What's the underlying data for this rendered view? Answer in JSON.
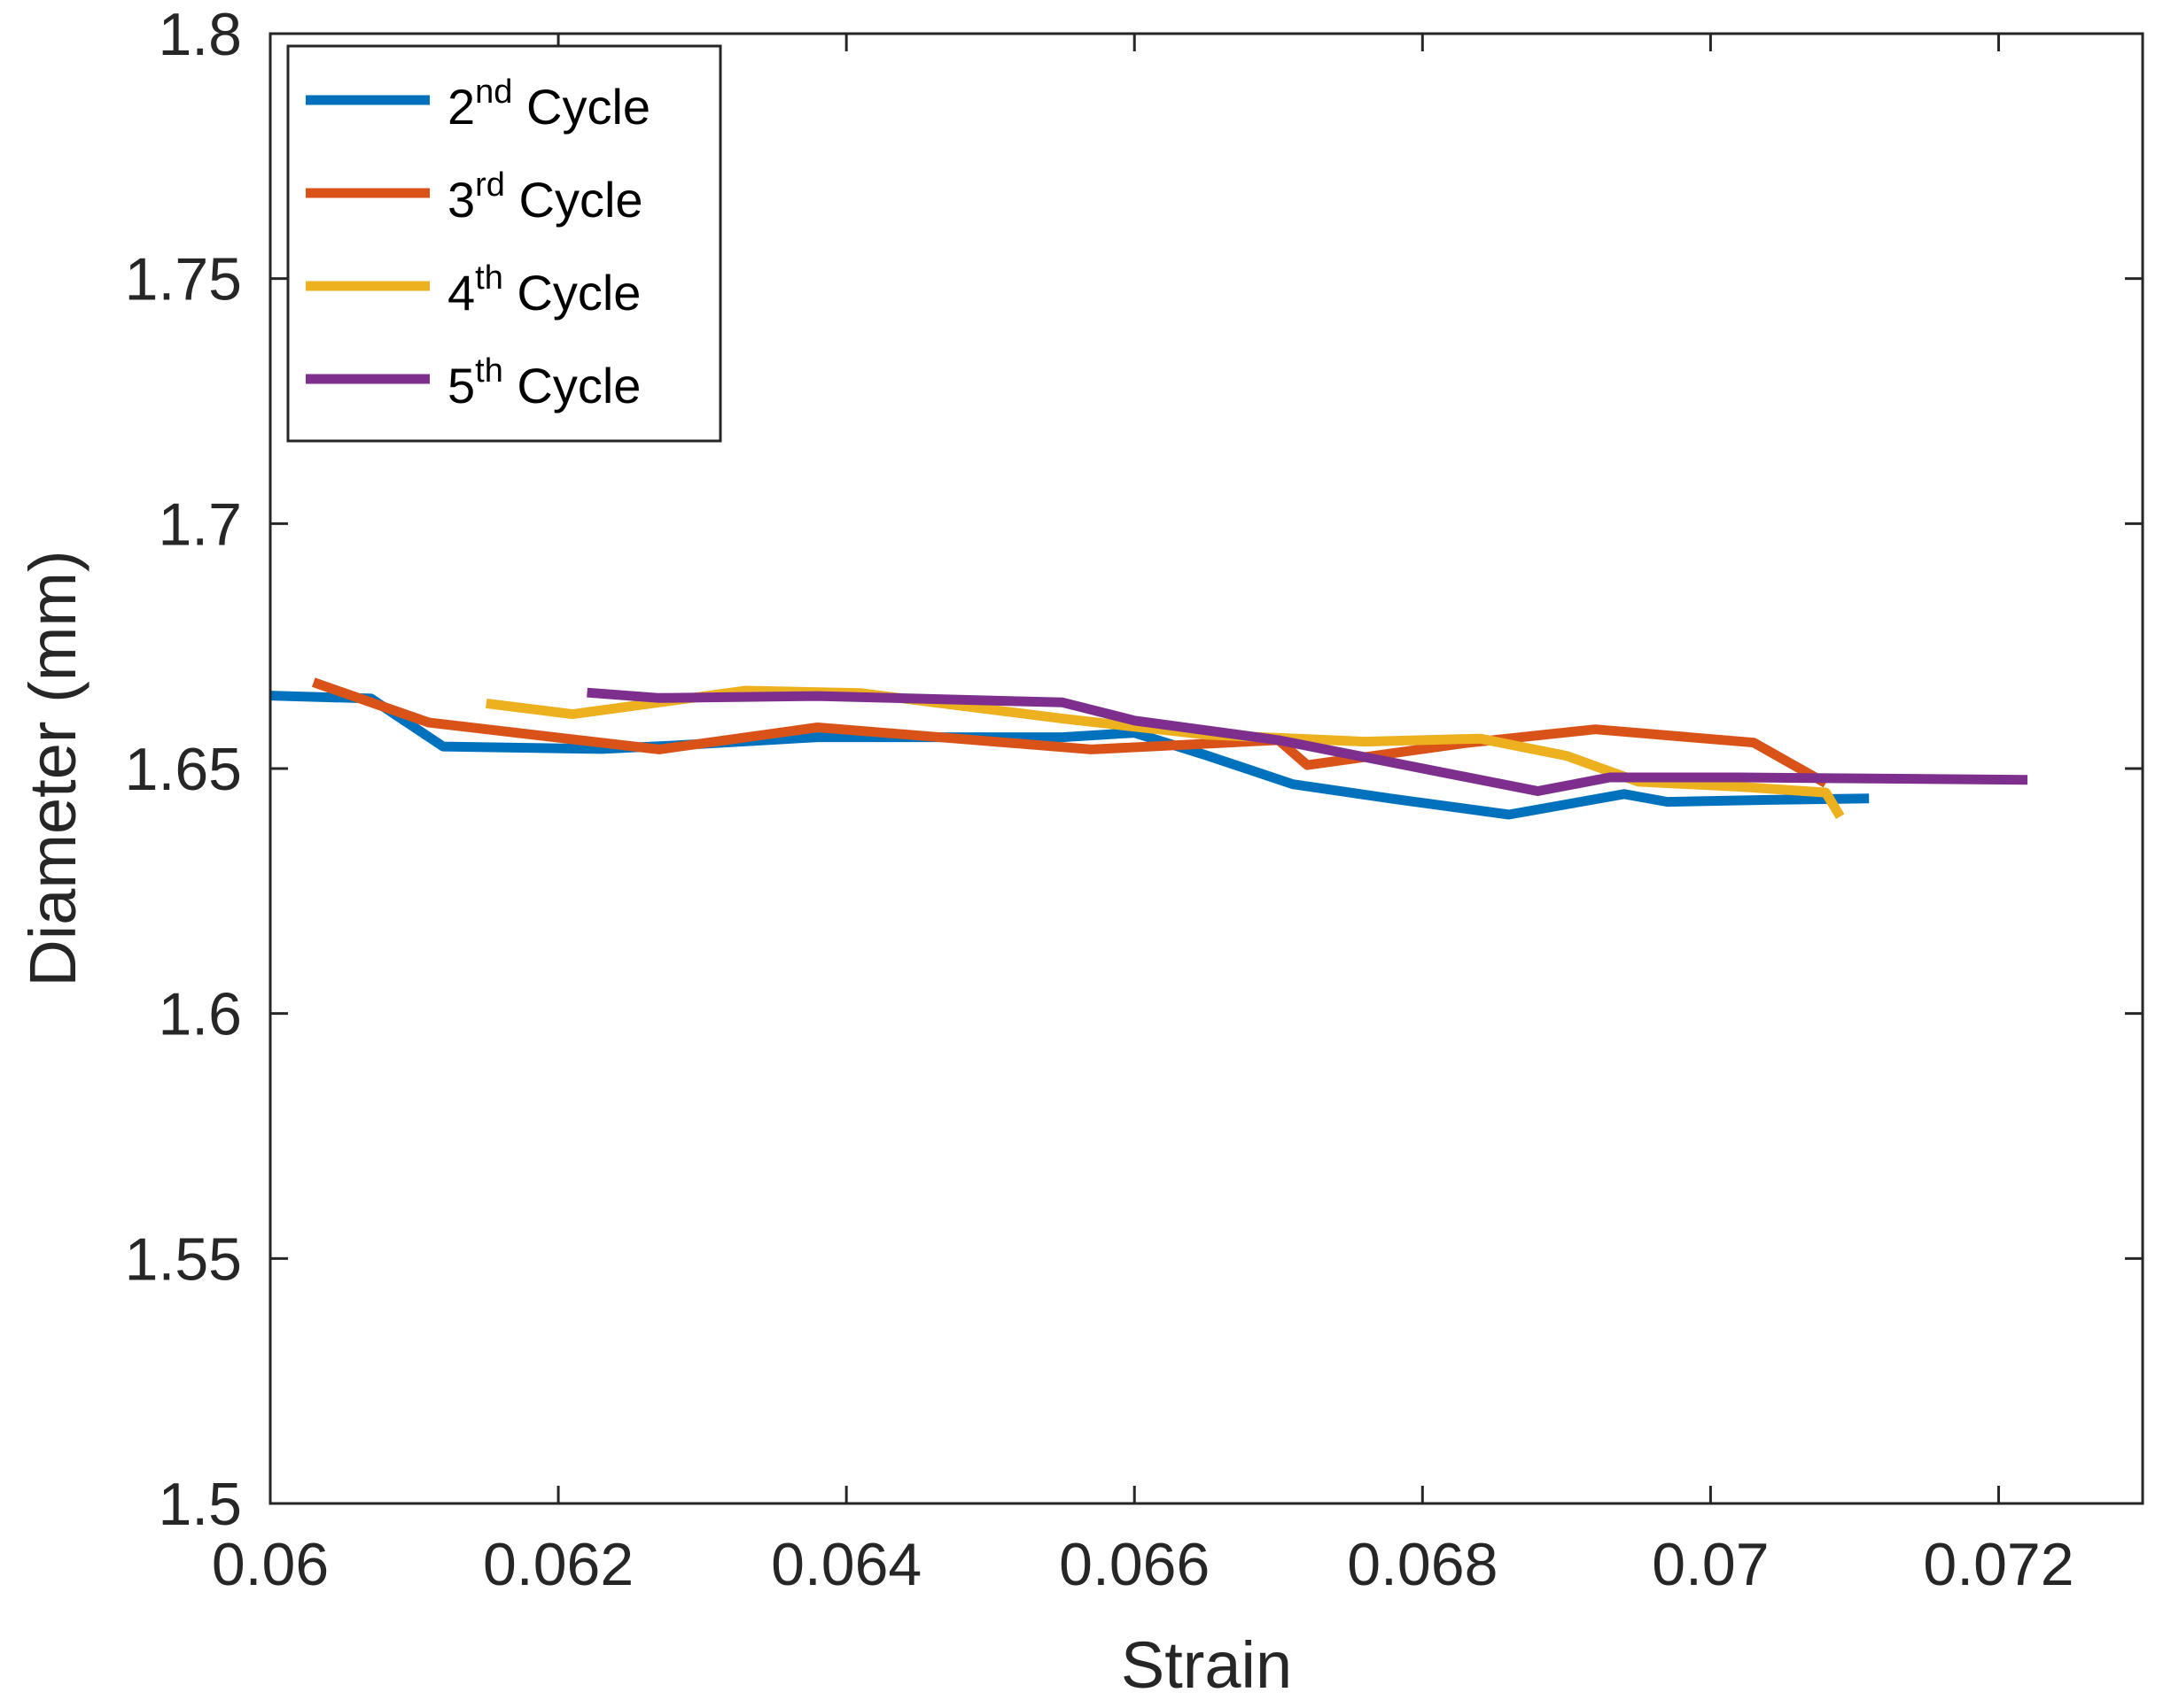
{
  "chart_data": {
    "type": "line",
    "title": "",
    "xlabel": "Strain",
    "ylabel": "Diameter (mm)",
    "xlim": [
      0.06,
      0.073
    ],
    "ylim": [
      1.5,
      1.8
    ],
    "xticks": [
      0.06,
      0.062,
      0.064,
      0.066,
      0.068,
      0.07,
      0.072
    ],
    "xtick_labels": [
      "0.06",
      "0.062",
      "0.064",
      "0.066",
      "0.068",
      "0.07",
      "0.072"
    ],
    "yticks": [
      1.5,
      1.55,
      1.6,
      1.65,
      1.7,
      1.75,
      1.8
    ],
    "ytick_labels": [
      "1.5",
      "1.55",
      "1.6",
      "1.65",
      "1.7",
      "1.75",
      "1.8"
    ],
    "grid": false,
    "legend_position": "top-left",
    "series": [
      {
        "name": "2nd Cycle",
        "label_base": "2",
        "label_sup": "nd",
        "label_rest": " Cycle",
        "color": "#0072BD",
        "x": [
          0.06,
          0.0607,
          0.0612,
          0.0623,
          0.0628,
          0.0638,
          0.0646,
          0.0655,
          0.066,
          0.0665,
          0.0671,
          0.0678,
          0.0686,
          0.0694,
          0.0697,
          0.0704,
          0.0711
        ],
        "y": [
          1.6649,
          1.6643,
          1.6545,
          1.654,
          1.6547,
          1.6564,
          1.6564,
          1.6564,
          1.6573,
          1.6527,
          1.6468,
          1.6438,
          1.6406,
          1.6448,
          1.6432,
          1.6436,
          1.6439
        ]
      },
      {
        "name": "3rd Cycle",
        "label_base": "3",
        "label_sup": "rd",
        "label_rest": " Cycle",
        "color": "#D95319",
        "x": [
          0.0603,
          0.0611,
          0.0627,
          0.0638,
          0.0657,
          0.067,
          0.0672,
          0.0683,
          0.0692,
          0.0703,
          0.0708
        ],
        "y": [
          1.6676,
          1.6594,
          1.6539,
          1.6584,
          1.6539,
          1.6558,
          1.6507,
          1.6552,
          1.658,
          1.6553,
          1.647
        ]
      },
      {
        "name": "4th Cycle",
        "label_base": "4",
        "label_sup": "th",
        "label_rest": " Cycle",
        "color": "#EDB120",
        "x": [
          0.0615,
          0.0621,
          0.0633,
          0.0641,
          0.0655,
          0.0665,
          0.0676,
          0.0684,
          0.069,
          0.0695,
          0.0702,
          0.0708,
          0.0709
        ],
        "y": [
          1.6633,
          1.6611,
          1.6659,
          1.6654,
          1.6602,
          1.6569,
          1.6555,
          1.6561,
          1.6526,
          1.6473,
          1.6463,
          1.6451,
          1.6402
        ]
      },
      {
        "name": "5th Cycle",
        "label_base": "5",
        "label_sup": "th",
        "label_rest": " Cycle",
        "color": "#7E2F8E",
        "x": [
          0.0622,
          0.0627,
          0.0638,
          0.0655,
          0.066,
          0.067,
          0.0688,
          0.0693,
          0.0702,
          0.0722
        ],
        "y": [
          1.6655,
          1.6644,
          1.6648,
          1.6635,
          1.6598,
          1.6558,
          1.6454,
          1.6482,
          1.6482,
          1.6477
        ]
      }
    ]
  }
}
